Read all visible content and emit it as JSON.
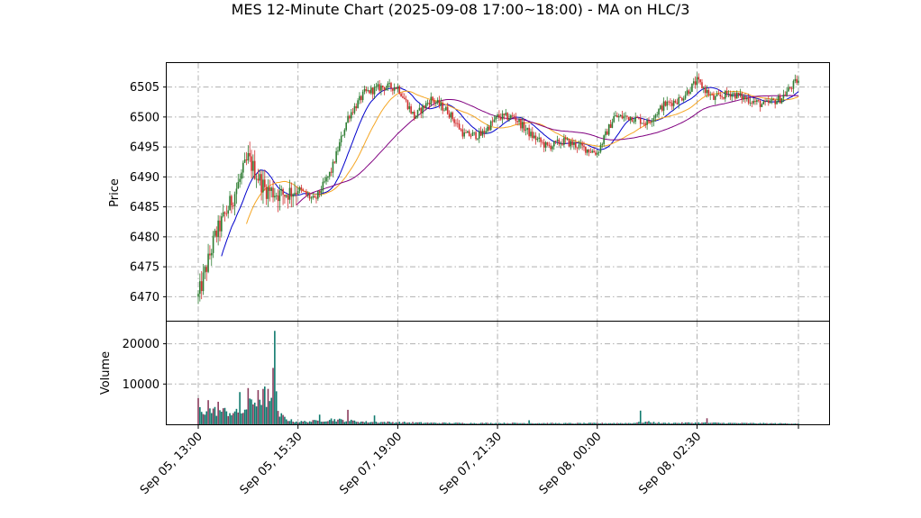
{
  "chart_data": {
    "type": "candlestick",
    "title": "MES 12-Minute Chart (2025-09-08 17:00~18:00) - MA on HLC/3",
    "grid": true,
    "colors": {
      "up": "#2e7d32",
      "down": "#d32f2f",
      "ma_fast": "#0000cc",
      "ma_mid": "#f5a623",
      "ma_slow": "#800080",
      "volume_up": "#107a6e",
      "volume_down": "#8a3b5c",
      "grid": "#b0b0b0"
    },
    "price_panel": {
      "ylabel": "Price",
      "ylim": [
        6466,
        6509
      ],
      "yticks": [
        6470,
        6475,
        6480,
        6485,
        6490,
        6495,
        6500,
        6505
      ],
      "ytick_labels": [
        "6470",
        "6475",
        "6480",
        "6485",
        "6490",
        "6495",
        "6500",
        "6505"
      ],
      "price_path_index": [
        0,
        10,
        20,
        30,
        40,
        50,
        60,
        70,
        80,
        90,
        100,
        110,
        120,
        130,
        140,
        150,
        160,
        170,
        180,
        190,
        200,
        210,
        220,
        230,
        240,
        250,
        260,
        270,
        280,
        290,
        300,
        310,
        320,
        330,
        340,
        350,
        360,
        361
      ],
      "price_path": [
        6470,
        6480,
        6486,
        6493,
        6488,
        6487,
        6488,
        6486,
        6491,
        6500,
        6504,
        6505,
        6505,
        6500,
        6503,
        6501,
        6497,
        6497,
        6500,
        6500,
        6497,
        6495,
        6496,
        6495,
        6494,
        6500,
        6500,
        6499,
        6502,
        6503,
        6506,
        6503,
        6504,
        6503,
        6502,
        6503,
        6506,
        6506
      ]
    },
    "volume_panel": {
      "ylabel": "Volume",
      "yticks": [
        10000,
        20000
      ],
      "ytick_labels": [
        "10000",
        "20000"
      ],
      "ylim": [
        0,
        25500
      ],
      "volume_index": [
        0,
        15,
        25,
        35,
        40,
        45,
        48,
        55,
        60,
        70,
        80,
        90,
        100,
        120,
        140,
        160,
        180,
        200,
        220,
        240,
        260,
        270,
        280,
        300,
        320,
        340,
        361
      ],
      "volume_level": [
        3500,
        3200,
        2700,
        6000,
        7000,
        4500,
        2500,
        1000,
        600,
        800,
        1200,
        900,
        600,
        500,
        350,
        300,
        300,
        300,
        250,
        280,
        300,
        600,
        300,
        400,
        300,
        250,
        200
      ],
      "volume_spikes": [
        {
          "index": 0,
          "value": 6500
        },
        {
          "index": 6,
          "value": 6000
        },
        {
          "index": 12,
          "value": 5600
        },
        {
          "index": 25,
          "value": 8000
        },
        {
          "index": 30,
          "value": 9000
        },
        {
          "index": 36,
          "value": 8500
        },
        {
          "index": 42,
          "value": 8800
        },
        {
          "index": 45,
          "value": 14000
        },
        {
          "index": 46,
          "value": 23200
        },
        {
          "index": 47,
          "value": 8200
        },
        {
          "index": 73,
          "value": 2400
        },
        {
          "index": 90,
          "value": 3600
        },
        {
          "index": 106,
          "value": 2200
        },
        {
          "index": 199,
          "value": 1000
        },
        {
          "index": 266,
          "value": 3400
        },
        {
          "index": 306,
          "value": 1500
        }
      ]
    },
    "x_ticks": {
      "labels": [
        "Sep 05, 13:00",
        "Sep 05, 15:30",
        "Sep 07, 19:00",
        "Sep 07, 21:30",
        "Sep 08, 00:00",
        "Sep 08, 02:30",
        ""
      ],
      "positions": [
        0,
        60,
        120,
        180,
        240,
        300,
        361
      ],
      "bar_count": 362
    }
  }
}
